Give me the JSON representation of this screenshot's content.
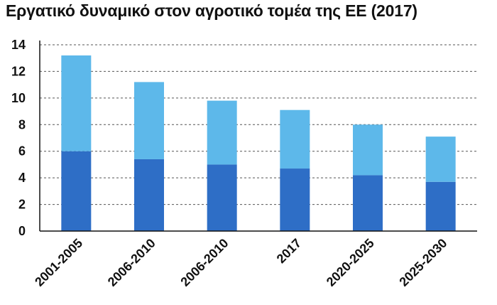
{
  "chart_data": {
    "type": "bar",
    "stacked": true,
    "title": "Εργατικό δυναμικό στον αγροτικό τομέα της ΕΕ (2017)",
    "xlabel": "",
    "ylabel": "",
    "categories": [
      "2001-2005",
      "2006-2010",
      "2006-2010",
      "2017",
      "2020-2025",
      "2025-2030"
    ],
    "series": [
      {
        "values": [
          6.0,
          5.4,
          5.0,
          4.7,
          4.2,
          3.7
        ],
        "color": "#2e6ec6"
      },
      {
        "values": [
          7.2,
          5.8,
          4.8,
          4.4,
          3.8,
          3.4
        ],
        "color": "#5db8ea"
      }
    ],
    "ylim": [
      0,
      14
    ],
    "yticks": [
      0,
      2,
      4,
      6,
      8,
      10,
      12,
      14
    ],
    "grid": "horizontal dashed",
    "legend": "none"
  }
}
